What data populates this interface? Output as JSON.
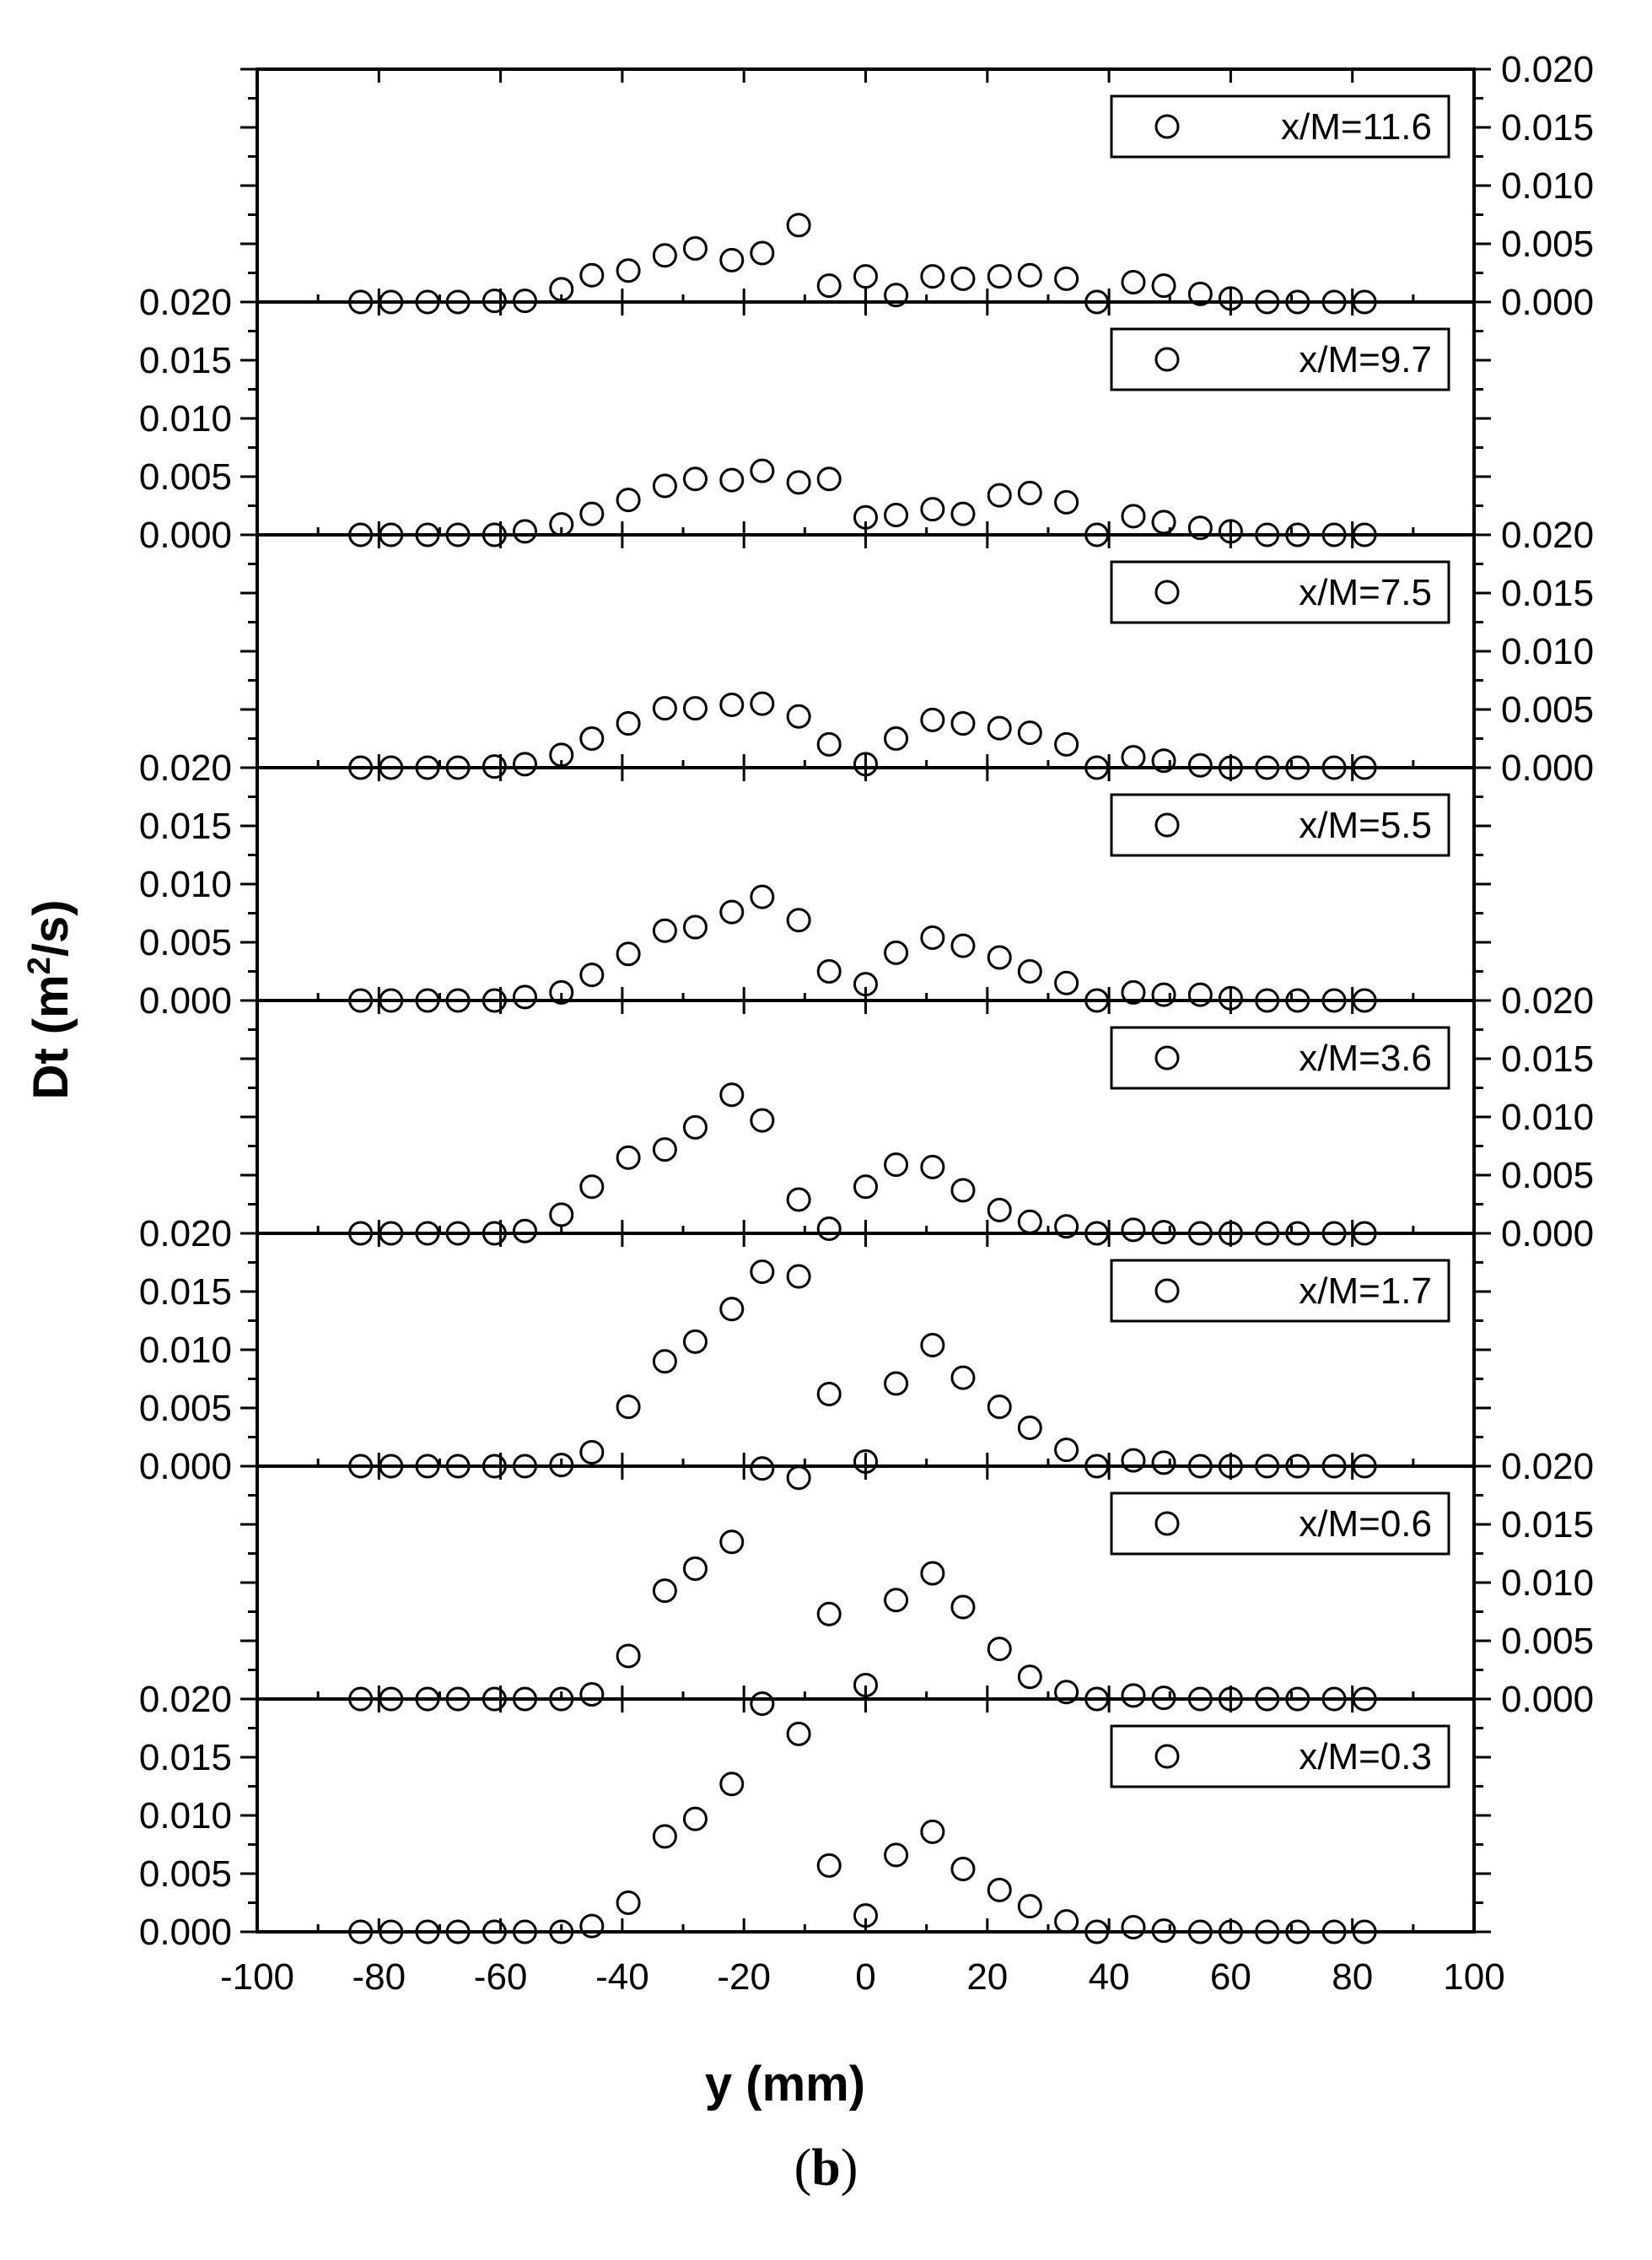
{
  "caption": {
    "open": "(",
    "letter": "b",
    "close": ")"
  },
  "chart_data": {
    "type": "scatter",
    "xlabel": "y (mm)",
    "ylabel_main": "Dt (m",
    "ylabel_sup": "2",
    "ylabel_tail": "/s)",
    "xlim": [
      -100,
      100
    ],
    "xticks": [
      "-100",
      "-80",
      "-60",
      "-40",
      "-20",
      "0",
      "20",
      "40",
      "60",
      "80",
      "100"
    ],
    "ylim": [
      0,
      0.02
    ],
    "yticks": [
      "0.000",
      "0.005",
      "0.010",
      "0.015",
      "0.020"
    ],
    "x": [
      -83,
      -78,
      -72,
      -67,
      -61,
      -56,
      -50,
      -45,
      -39,
      -33,
      -28,
      -22,
      -17,
      -11,
      -6,
      0,
      5,
      11,
      16,
      22,
      27,
      33,
      38,
      44,
      49,
      55,
      60,
      66,
      71,
      77,
      82
    ],
    "panels": [
      {
        "name": "x/M=11.6",
        "tick_side": "right",
        "values": [
          0.0,
          0.0,
          0.0,
          0.0,
          0.0001,
          0.0001,
          0.0011,
          0.0023,
          0.0027,
          0.004,
          0.0046,
          0.0036,
          0.0042,
          0.0066,
          0.0014,
          0.0022,
          0.0006,
          0.0022,
          0.002,
          0.0022,
          0.0023,
          0.002,
          0.0,
          0.0017,
          0.0014,
          0.0007,
          0.0003,
          0.0,
          0.0,
          0.0,
          0.0
        ]
      },
      {
        "name": "x/M=9.7",
        "tick_side": "left",
        "values": [
          0.0,
          0.0,
          0.0,
          0.0,
          0.0,
          0.0003,
          0.0009,
          0.0018,
          0.003,
          0.0042,
          0.0048,
          0.0047,
          0.0055,
          0.0045,
          0.0048,
          0.0015,
          0.0017,
          0.0022,
          0.0018,
          0.0034,
          0.0036,
          0.0028,
          0.0,
          0.0016,
          0.0011,
          0.0006,
          0.0003,
          0.0,
          0.0,
          0.0,
          0.0
        ]
      },
      {
        "name": "x/M=7.5",
        "tick_side": "right",
        "values": [
          0.0,
          0.0,
          0.0,
          0.0,
          0.0001,
          0.0003,
          0.0011,
          0.0025,
          0.0038,
          0.0051,
          0.0051,
          0.0054,
          0.0055,
          0.0044,
          0.002,
          0.0003,
          0.0025,
          0.0041,
          0.0038,
          0.0034,
          0.003,
          0.002,
          0.0,
          0.0009,
          0.0006,
          0.0002,
          0.0,
          0.0,
          0.0,
          0.0,
          0.0
        ]
      },
      {
        "name": "x/M=5.5",
        "tick_side": "left",
        "values": [
          0.0,
          0.0,
          0.0,
          0.0,
          0.0,
          0.0003,
          0.0007,
          0.0022,
          0.004,
          0.006,
          0.0063,
          0.0076,
          0.0089,
          0.0069,
          0.0025,
          0.0014,
          0.0041,
          0.0054,
          0.0047,
          0.0037,
          0.0025,
          0.0015,
          0.0,
          0.0007,
          0.0005,
          0.0005,
          0.0002,
          0.0,
          0.0,
          0.0,
          0.0
        ]
      },
      {
        "name": "x/M=3.6",
        "tick_side": "right",
        "values": [
          0.0,
          0.0,
          0.0,
          0.0,
          0.0,
          0.0002,
          0.0016,
          0.004,
          0.0065,
          0.0072,
          0.0091,
          0.0119,
          0.0097,
          0.0029,
          0.0004,
          0.004,
          0.0059,
          0.0057,
          0.0037,
          0.002,
          0.001,
          0.0006,
          0.0,
          0.0003,
          0.0001,
          0.0,
          0.0,
          0.0,
          0.0,
          0.0,
          0.0
        ]
      },
      {
        "name": "x/M=1.7",
        "tick_side": "left",
        "values": [
          0.0,
          0.0,
          0.0,
          0.0,
          0.0,
          0.0,
          0.0001,
          0.0012,
          0.0051,
          0.009,
          0.0107,
          0.0135,
          0.0167,
          0.0163,
          0.0062,
          0.0004,
          0.0071,
          0.0104,
          0.0076,
          0.0051,
          0.0033,
          0.0014,
          0.0,
          0.0005,
          0.0003,
          0.0,
          0.0,
          0.0,
          0.0,
          0.0,
          0.0
        ]
      },
      {
        "name": "x/M=0.6",
        "tick_side": "right",
        "values": [
          0.0,
          0.0,
          0.0,
          0.0,
          0.0,
          0.0,
          0.0,
          0.0004,
          0.0037,
          0.0093,
          0.0112,
          0.0135,
          0.0198,
          0.019,
          0.0073,
          0.0012,
          0.0085,
          0.0108,
          0.0079,
          0.0043,
          0.0019,
          0.0006,
          0.0,
          0.0003,
          0.0001,
          0.0,
          0.0,
          0.0,
          0.0,
          0.0,
          0.0
        ]
      },
      {
        "name": "x/M=0.3",
        "tick_side": "left",
        "values": [
          0.0,
          0.0,
          0.0,
          0.0,
          0.0,
          0.0,
          0.0,
          0.0005,
          0.0025,
          0.0082,
          0.0097,
          0.0127,
          0.0196,
          0.017,
          0.0057,
          0.0014,
          0.0066,
          0.0086,
          0.0054,
          0.0036,
          0.0022,
          0.0009,
          0.0,
          0.0004,
          0.0001,
          0.0,
          0.0,
          0.0,
          0.0,
          0.0,
          0.0
        ]
      }
    ]
  }
}
